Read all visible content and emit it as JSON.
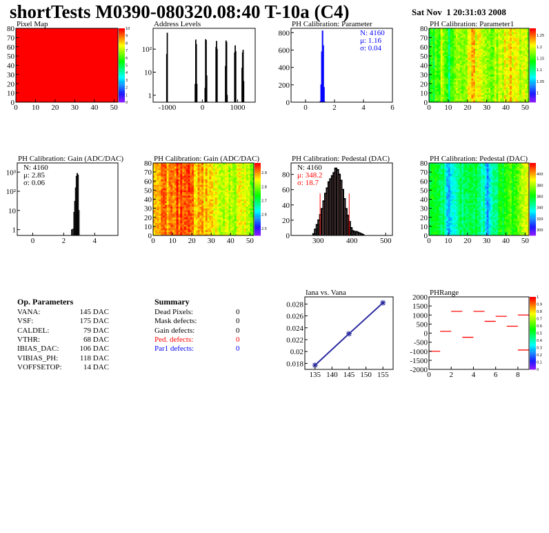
{
  "header": {
    "title": "shortTests M0390-080320.08:40 T-10a (C4)",
    "date": "Sat Nov  1 20:31:03 2008"
  },
  "op_parameters": {
    "heading": "Op. Parameters",
    "rows": [
      {
        "label": "VANA:",
        "value": "145 DAC"
      },
      {
        "label": "VSF:",
        "value": "175 DAC"
      },
      {
        "label": "CALDEL:",
        "value": "79 DAC"
      },
      {
        "label": "VTHR:",
        "value": "68 DAC"
      },
      {
        "label": "IBIAS_DAC:",
        "value": "106 DAC"
      },
      {
        "label": "VIBIAS_PH:",
        "value": "118 DAC"
      },
      {
        "label": "VOFFSETOP:",
        "value": "14 DAC"
      }
    ]
  },
  "summary": {
    "heading": "Summary",
    "rows": [
      {
        "label": "Dead Pixels:",
        "value": "0",
        "color": "#000000"
      },
      {
        "label": "Mask defects:",
        "value": "0",
        "color": "#000000"
      },
      {
        "label": "Gain defects:",
        "value": "0",
        "color": "#000000"
      },
      {
        "label": "Ped. defects:",
        "value": "0",
        "color": "#ff0000"
      },
      {
        "label": "Par1 defects:",
        "value": "0",
        "color": "#0000ff"
      }
    ]
  },
  "chart_data": [
    {
      "id": "pixmap",
      "type": "heatmap",
      "title": "Pixel Map",
      "xlim": [
        0,
        52
      ],
      "ylim": [
        0,
        80
      ],
      "zlim": [
        0,
        10
      ],
      "xticks": [
        0,
        10,
        20,
        30,
        40,
        50
      ],
      "yticks": [
        0,
        10,
        20,
        30,
        40,
        50,
        60,
        70,
        80
      ],
      "zticks": [
        0,
        1,
        2,
        3,
        4,
        5,
        6,
        7,
        8,
        9,
        10
      ],
      "uniform_value": 10
    },
    {
      "id": "addr",
      "type": "bar",
      "title": "Address Levels",
      "xlim": [
        -1400,
        1500
      ],
      "ylim": [
        0.5,
        800
      ],
      "log_y": true,
      "xticks": [
        -1000,
        0,
        1000
      ],
      "yticks": [
        {
          "v": 1,
          "l": "1"
        },
        {
          "v": 10,
          "l": "10"
        },
        {
          "v": 100,
          "l": "10²"
        }
      ],
      "bins": [
        [
          -1020,
          60
        ],
        [
          -1005,
          500
        ],
        [
          -210,
          3
        ],
        [
          -195,
          250
        ],
        [
          -180,
          160
        ],
        [
          -165,
          3
        ],
        [
          70,
          2
        ],
        [
          85,
          260
        ],
        [
          100,
          240
        ],
        [
          115,
          7
        ],
        [
          380,
          120
        ],
        [
          395,
          220
        ],
        [
          410,
          100
        ],
        [
          650,
          18
        ],
        [
          665,
          230
        ],
        [
          680,
          200
        ],
        [
          695,
          1
        ],
        [
          910,
          70
        ],
        [
          925,
          140
        ],
        [
          940,
          80
        ],
        [
          1120,
          15
        ],
        [
          1135,
          70
        ],
        [
          1150,
          90
        ],
        [
          1165,
          4
        ]
      ],
      "bin_width": 15,
      "color": "#000000"
    },
    {
      "id": "param",
      "type": "bar",
      "title": "PH Calibration: Parameter",
      "xlim": [
        -1,
        6
      ],
      "ylim": [
        0,
        850
      ],
      "xticks": [
        0,
        2,
        4,
        6
      ],
      "yticks": [
        0,
        200,
        400,
        600,
        800
      ],
      "bins": [
        [
          1.0,
          8
        ],
        [
          1.05,
          200
        ],
        [
          1.1,
          580
        ],
        [
          1.15,
          820
        ],
        [
          1.2,
          650
        ],
        [
          1.25,
          170
        ],
        [
          1.3,
          3
        ]
      ],
      "bin_width": 0.05,
      "color": "#0000ff",
      "stats": [
        {
          "text": "N: 4160",
          "color": "#0000ff"
        },
        {
          "text": "μ: 1.16",
          "color": "#0000ff"
        },
        {
          "text": "σ: 0.04",
          "color": "#0000ff"
        }
      ]
    },
    {
      "id": "param1",
      "type": "heatmap",
      "title": "PH Calibration: Parameter1",
      "xlim": [
        0,
        52
      ],
      "ylim": [
        0,
        80
      ],
      "zlim": [
        0.96,
        1.28
      ],
      "xticks": [
        0,
        10,
        20,
        30,
        40,
        50
      ],
      "yticks": [
        0,
        10,
        20,
        30,
        40,
        50,
        60,
        70,
        80
      ],
      "zticks": [
        1,
        1.05,
        1.1,
        1.15,
        1.2,
        1.25
      ],
      "column_profile": [
        1.14,
        1.18,
        1.12,
        1.18,
        1.16,
        1.22,
        1.2,
        1.17,
        1.18,
        1.19,
        1.22,
        1.2,
        1.18
      ]
    },
    {
      "id": "gainh",
      "type": "bar",
      "title": "PH Calibration: Gain (ADC/DAC)",
      "xlim": [
        -1,
        5.5
      ],
      "ylim": [
        0.5,
        3000
      ],
      "log_y": true,
      "xticks": [
        0,
        2,
        4
      ],
      "yticks": [
        {
          "v": 1,
          "l": "1"
        },
        {
          "v": 10,
          "l": "10"
        },
        {
          "v": 100,
          "l": "10²"
        },
        {
          "v": 1000,
          "l": "10³"
        }
      ],
      "bins": [
        [
          2.5,
          1
        ],
        [
          2.6,
          1.1
        ],
        [
          2.65,
          8
        ],
        [
          2.7,
          30
        ],
        [
          2.75,
          150
        ],
        [
          2.8,
          600
        ],
        [
          2.85,
          850
        ],
        [
          2.9,
          700
        ],
        [
          2.95,
          10
        ]
      ],
      "bin_width": 0.05,
      "color": "#000000",
      "stats": [
        {
          "text": "N: 4160",
          "color": "#000000"
        },
        {
          "text": "μ: 2.85",
          "color": "#000000"
        },
        {
          "text": "σ: 0.06",
          "color": "#000000"
        }
      ]
    },
    {
      "id": "gainmap",
      "type": "heatmap",
      "title": "PH Calibration: Gain (ADC/DAC)",
      "xlim": [
        0,
        52
      ],
      "ylim": [
        0,
        80
      ],
      "zlim": [
        2.45,
        2.97
      ],
      "xticks": [
        0,
        10,
        20,
        30,
        40,
        50
      ],
      "yticks": [
        0,
        10,
        20,
        30,
        40,
        50,
        60,
        70,
        80
      ],
      "zticks": [
        2.5,
        2.6,
        2.7,
        2.8,
        2.9
      ],
      "column_profile": [
        2.9,
        2.9,
        2.93,
        2.93,
        2.92,
        2.88,
        2.88,
        2.87,
        2.83,
        2.83,
        2.82,
        2.84,
        2.8
      ]
    },
    {
      "id": "pedh",
      "type": "bar",
      "title": "PH Calibration: Pedestal (DAC)",
      "xlim": [
        220,
        520
      ],
      "ylim": [
        0,
        95
      ],
      "xticks": [
        300,
        400,
        500
      ],
      "yticks": [
        0,
        20,
        40,
        60,
        80
      ],
      "bins": [
        [
          285,
          2
        ],
        [
          290,
          8
        ],
        [
          295,
          14
        ],
        [
          300,
          20
        ],
        [
          305,
          27
        ],
        [
          310,
          35
        ],
        [
          315,
          45
        ],
        [
          320,
          55
        ],
        [
          325,
          62
        ],
        [
          330,
          70
        ],
        [
          335,
          74
        ],
        [
          340,
          78
        ],
        [
          345,
          82
        ],
        [
          350,
          88
        ],
        [
          355,
          86
        ],
        [
          360,
          80
        ],
        [
          365,
          72
        ],
        [
          370,
          60
        ],
        [
          375,
          48
        ],
        [
          380,
          35
        ],
        [
          385,
          26
        ],
        [
          390,
          18
        ],
        [
          395,
          10
        ],
        [
          400,
          6
        ],
        [
          405,
          5
        ],
        [
          410,
          5
        ],
        [
          415,
          4
        ],
        [
          420,
          3
        ],
        [
          425,
          2
        ],
        [
          430,
          1
        ]
      ],
      "bin_width": 5,
      "color": "#000000",
      "cuts": [
        306,
        392
      ],
      "cut_height": 55,
      "stats": [
        {
          "text": "N: 4160",
          "color": "#000000"
        },
        {
          "text": "μ: 348.2",
          "color": "#ff0000"
        },
        {
          "text": "σ: 18.7",
          "color": "#ff0000"
        }
      ]
    },
    {
      "id": "pedmap",
      "type": "heatmap",
      "title": "PH Calibration: Pedestal (DAC)",
      "xlim": [
        0,
        52
      ],
      "ylim": [
        0,
        80
      ],
      "zlim": [
        290,
        420
      ],
      "xticks": [
        0,
        10,
        20,
        30,
        40,
        50
      ],
      "yticks": [
        0,
        10,
        20,
        30,
        40,
        50,
        60,
        70,
        80
      ],
      "zticks": [
        300,
        320,
        340,
        360,
        380,
        400
      ],
      "column_profile": [
        360,
        355,
        325,
        345,
        350,
        355,
        350,
        325,
        350,
        360,
        365,
        375,
        395
      ]
    },
    {
      "id": "iana",
      "type": "line",
      "title": "Iana vs. Vana",
      "xlim": [
        132,
        158
      ],
      "ylim": [
        0.017,
        0.0292
      ],
      "xticks": [
        135,
        140,
        145,
        150,
        155
      ],
      "yticks": [
        0.018,
        0.02,
        0.022,
        0.024,
        0.026,
        0.028
      ],
      "ytick_labels": [
        "0.018",
        "0.02",
        "0.022",
        "0.024",
        "0.026",
        "0.028"
      ],
      "x": [
        135,
        145,
        155
      ],
      "y": [
        0.0177,
        0.023,
        0.0282
      ],
      "color": "#2a2aa0"
    },
    {
      "id": "phrange",
      "type": "heatmap",
      "title": "PHRange",
      "xlim": [
        0,
        9
      ],
      "ylim": [
        -2000,
        2000
      ],
      "zlim": [
        0,
        1
      ],
      "xticks": [
        0,
        2,
        4,
        6,
        8
      ],
      "yticks": [
        -2000,
        -1500,
        -1000,
        -500,
        0,
        500,
        1000,
        1500,
        2000
      ],
      "zticks": [
        0,
        0.1,
        0.2,
        0.3,
        0.4,
        0.5,
        0.6,
        0.7,
        0.8,
        0.9,
        1
      ],
      "segments": [
        [
          0,
          -1000
        ],
        [
          1,
          100
        ],
        [
          2,
          1200
        ],
        [
          3,
          -230
        ],
        [
          4,
          1200
        ],
        [
          5,
          650
        ],
        [
          6,
          930
        ],
        [
          7,
          380
        ],
        [
          8,
          1000
        ],
        [
          8,
          -930
        ]
      ],
      "color": "#ff0000"
    }
  ]
}
